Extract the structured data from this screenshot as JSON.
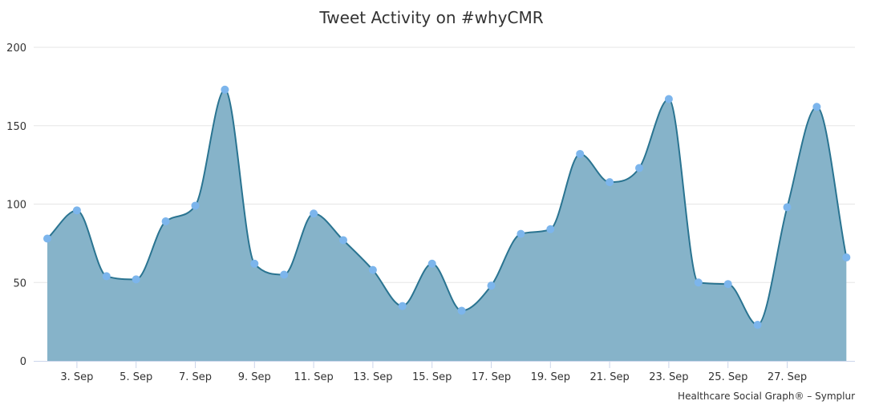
{
  "chart_data": {
    "type": "area",
    "title": "Tweet Activity on #whyCMR",
    "credit": "Healthcare Social Graph® – Symplur",
    "xlabel": "",
    "ylabel": "",
    "ylim": [
      0,
      200
    ],
    "y_ticks": [
      "0",
      "50",
      "100",
      "150",
      "200"
    ],
    "x_ticks": [
      {
        "day": 3,
        "label": "3. Sep"
      },
      {
        "day": 5,
        "label": "5. Sep"
      },
      {
        "day": 7,
        "label": "7. Sep"
      },
      {
        "day": 9,
        "label": "9. Sep"
      },
      {
        "day": 11,
        "label": "11. Sep"
      },
      {
        "day": 13,
        "label": "13. Sep"
      },
      {
        "day": 15,
        "label": "15. Sep"
      },
      {
        "day": 17,
        "label": "17. Sep"
      },
      {
        "day": 19,
        "label": "19. Sep"
      },
      {
        "day": 21,
        "label": "21. Sep"
      },
      {
        "day": 23,
        "label": "23. Sep"
      },
      {
        "day": 25,
        "label": "25. Sep"
      },
      {
        "day": 27,
        "label": "27. Sep"
      }
    ],
    "x": [
      "2. Sep",
      "3. Sep",
      "4. Sep",
      "5. Sep",
      "6. Sep",
      "7. Sep",
      "8. Sep",
      "9. Sep",
      "10. Sep",
      "11. Sep",
      "12. Sep",
      "13. Sep",
      "14. Sep",
      "15. Sep",
      "16. Sep",
      "17. Sep",
      "18. Sep",
      "19. Sep",
      "20. Sep",
      "21. Sep",
      "22. Sep",
      "23. Sep",
      "24. Sep",
      "25. Sep",
      "26. Sep",
      "27. Sep",
      "28. Sep",
      "29. Sep"
    ],
    "series": [
      {
        "values": [
          78,
          96,
          54,
          52,
          89,
          99,
          173,
          62,
          55,
          94,
          77,
          58,
          35,
          62,
          32,
          48,
          81,
          84,
          132,
          114,
          123,
          167,
          50,
          49,
          23,
          98,
          162,
          66
        ]
      }
    ],
    "grid": true,
    "legend": "none",
    "colors": {
      "fill": "#86b3c9",
      "line": "#2a7491",
      "marker": "#7cb5ec"
    }
  }
}
